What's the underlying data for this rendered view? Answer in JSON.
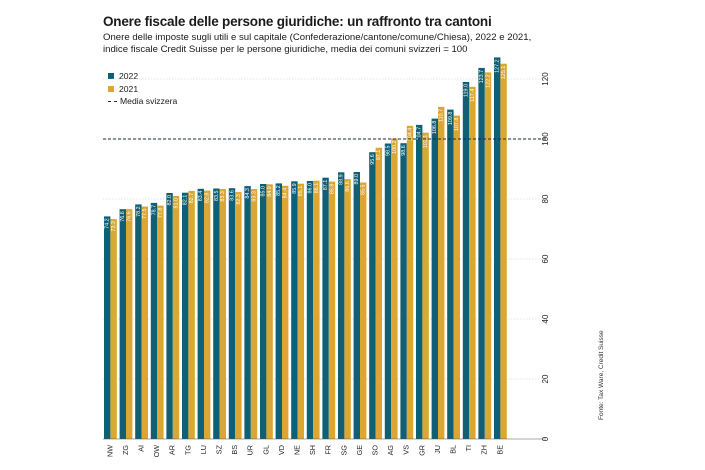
{
  "colors": {
    "series_2022": "#0f5f75",
    "series_2021": "#dba632",
    "reference": "#1b2a4a",
    "grid": "#c8c8c8",
    "text": "#1a1a1a"
  },
  "chart_data": {
    "type": "bar",
    "title": "Onere fiscale delle persone giuridiche: un raffronto tra cantoni",
    "subtitle": "Onere delle imposte sugli utili e sul capitale (Confederazione/cantone/comune/Chiesa), 2022 e 2021, indice fiscale Credit Suisse per le persone giuridiche, media dei comuni svizzeri = 100",
    "categories": [
      "NW",
      "ZG",
      "AI",
      "OW",
      "AR",
      "TG",
      "LU",
      "SZ",
      "BS",
      "UR",
      "GL",
      "VD",
      "NE",
      "SH",
      "FR",
      "SG",
      "GE",
      "SO",
      "AG",
      "VS",
      "GR",
      "JU",
      "BL",
      "TI",
      "ZH",
      "BE"
    ],
    "series": [
      {
        "name": "2022",
        "values": [
          74.2,
          76.6,
          78.2,
          78.7,
          82.0,
          82.1,
          83.4,
          83.5,
          83.6,
          84.3,
          85.0,
          85.2,
          85.9,
          86.0,
          87.1,
          88.9,
          89.0,
          95.6,
          98.5,
          98.6,
          104.7,
          106.8,
          109.8,
          119.0,
          123.7,
          127.2
        ]
      },
      {
        "name": "2021",
        "values": [
          73.3,
          76.6,
          77.5,
          77.8,
          81.0,
          82.7,
          82.8,
          83.3,
          82.3,
          83.3,
          84.9,
          84.4,
          85.1,
          86.1,
          85.8,
          86.6,
          85.5,
          97.1,
          100.2,
          104.4,
          102.1,
          110.7,
          107.8,
          117.4,
          122.2,
          125.1
        ]
      }
    ],
    "reference_line": {
      "value": 100,
      "label": "Media svizzera"
    },
    "ylim": [
      0,
      130
    ],
    "yticks": [
      0,
      20,
      40,
      60,
      80,
      100,
      120
    ],
    "xlabel": "",
    "ylabel": "",
    "legend": "top-left",
    "source": "Fonte: Tax Ware, Credit Suisse"
  }
}
